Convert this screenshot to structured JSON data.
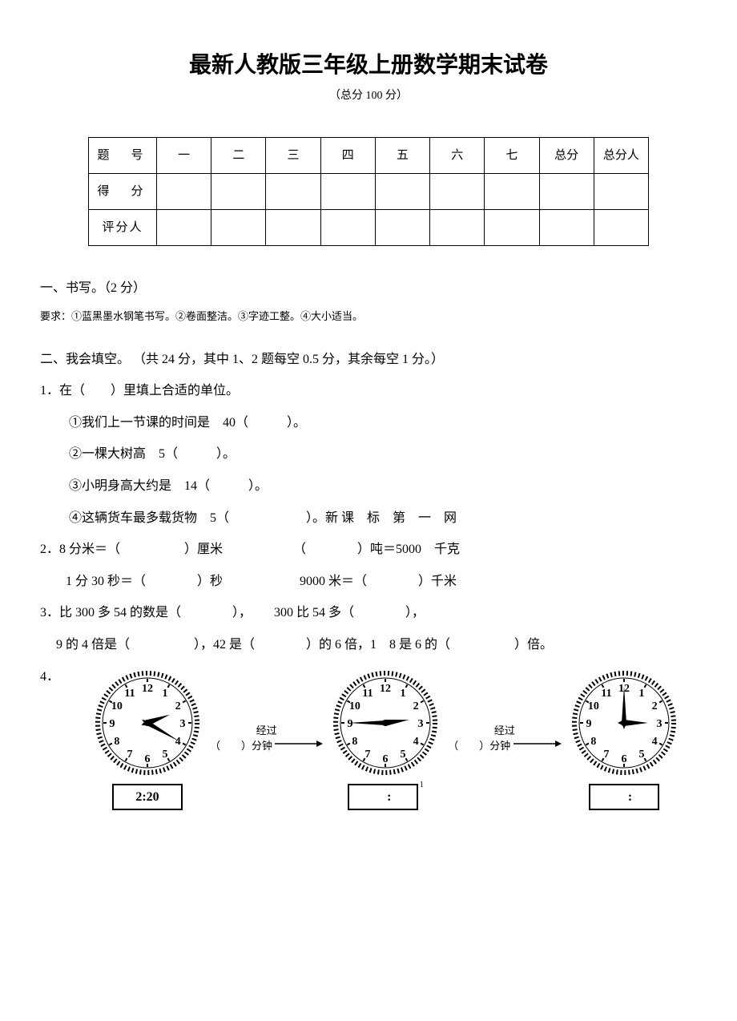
{
  "title": "最新人教版三年级上册数学期末试卷",
  "subtitle": "（总分 100 分）",
  "score_table": {
    "row_labels": [
      "题　号",
      "得　分",
      "评分人"
    ],
    "cols": [
      "一",
      "二",
      "三",
      "四",
      "五",
      "六",
      "七",
      "总分",
      "总分人"
    ]
  },
  "section1": {
    "heading": "一、书写。（2 分）",
    "req": "要求：①蓝黑墨水钢笔书写。②卷面整洁。③字迹工整。④大小适当。"
  },
  "section2": {
    "heading": "二、我会填空。 （共 24 分，其中 1、2 题每空 0.5 分，其余每空 1 分。）",
    "q1": {
      "stem": "1．在（　　）里填上合适的单位。",
      "a": "①我们上一节课的时间是　40（　　　）。",
      "b": "②一棵大树高　5（　　　）。",
      "c": "③小明身高大约是　14（　　　）。",
      "d": "④这辆货车最多载货物　5（　　　　　　）。新 课　标　第　一　网"
    },
    "q2": {
      "a": "2．8 分米＝（　　　　　）厘米　　　　　　（　　　　）吨＝5000　千克",
      "b": "　　1 分 30 秒＝（　　　　）秒　　　　　　9000 米＝（　　　　）千米"
    },
    "q3": {
      "a": "3．比 300 多 54 的数是（　　　　），　　 300 比 54 多（　　　　），",
      "b": "　 9 的 4 倍是（　　　　　），42 是（　　　　）的 6 倍，1　8 是 6 的（　　　　　）倍。"
    },
    "q4": {
      "label": "4．",
      "arrow1": "经过",
      "arrow1b": "（　　）分钟",
      "arrow2": "经过",
      "arrow2b": "（　　）分钟",
      "clock1": {
        "h": 2,
        "m": 20,
        "box": "2:20"
      },
      "clock2": {
        "h": 2,
        "m": 45,
        "box": "　:　"
      },
      "clock3": {
        "h": 3,
        "m": 0,
        "box": "　:　"
      },
      "pagenum": "1"
    }
  },
  "colors": {
    "ink": "#000000",
    "bg": "#ffffff"
  }
}
